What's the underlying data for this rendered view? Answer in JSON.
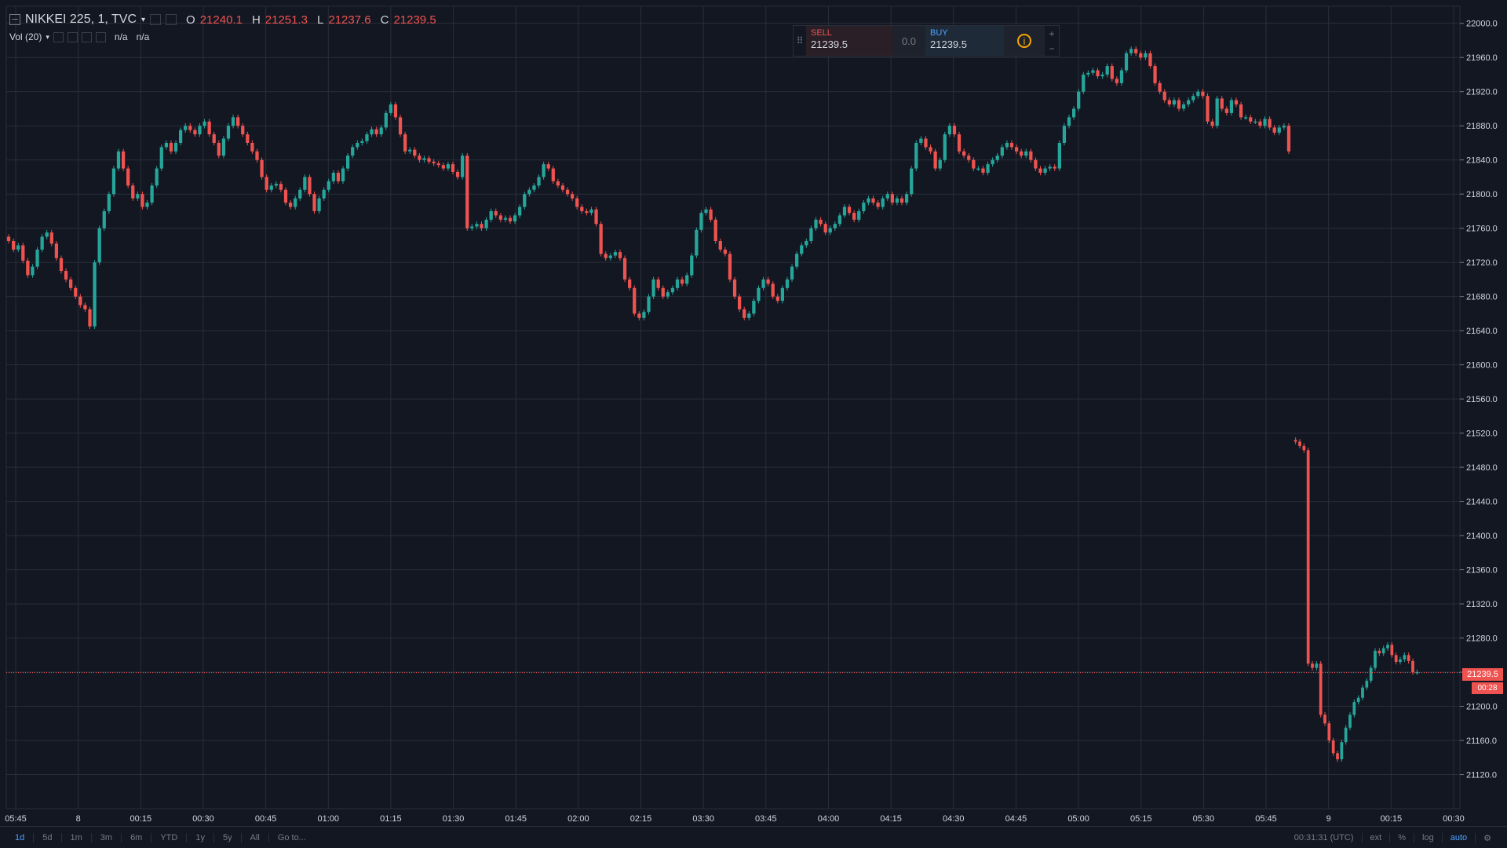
{
  "header": {
    "symbol": "NIKKEI 225, 1, TVC",
    "ohlc": [
      {
        "k": "O",
        "v": "21240.1"
      },
      {
        "k": "H",
        "v": "21251.3"
      },
      {
        "k": "L",
        "v": "21237.6"
      },
      {
        "k": "C",
        "v": "21239.5"
      }
    ],
    "volume_label": "Vol (20)",
    "volume_values": [
      "n/a",
      "n/a"
    ]
  },
  "trade_panel": {
    "sell_label": "SELL",
    "sell_price": "21239.5",
    "spread": "0.0",
    "buy_label": "BUY",
    "buy_price": "21239.5",
    "plus": "+",
    "minus": "−"
  },
  "price_tag": "21239.5",
  "timer_tag": "00:28",
  "toolbar": {
    "ranges": [
      "1d",
      "5d",
      "1m",
      "3m",
      "6m",
      "YTD",
      "1y",
      "5y",
      "All",
      "Go to..."
    ],
    "active_range": "1d",
    "clock": "00:31:31 (UTC)",
    "ext": "ext",
    "percent": "%",
    "log": "log",
    "auto": "auto"
  },
  "colors": {
    "background": "#131722",
    "grid": "#2a2e39",
    "up": "#26a69a",
    "down": "#ef5350",
    "text": "#d1d4dc",
    "muted": "#787b86",
    "accent": "#4fa3ff"
  },
  "chart_data": {
    "type": "candlestick",
    "title": "NIKKEI 225, 1, TVC",
    "ylim": [
      21080,
      22020
    ],
    "y_ticks": [
      22000,
      21960,
      21920,
      21880,
      21840,
      21800,
      21760,
      21720,
      21680,
      21640,
      21600,
      21560,
      21520,
      21480,
      21440,
      21400,
      21360,
      21320,
      21280,
      21240,
      21200,
      21160,
      21120
    ],
    "x_ticks": [
      "05:45",
      "8",
      "00:15",
      "00:30",
      "00:45",
      "01:00",
      "01:15",
      "01:30",
      "01:45",
      "02:00",
      "02:15",
      "03:30",
      "03:45",
      "04:00",
      "04:15",
      "04:30",
      "04:45",
      "05:00",
      "05:15",
      "05:30",
      "05:45",
      "9",
      "00:15",
      "00:30"
    ],
    "last_price": 21239.5,
    "series": [
      {
        "session": "Day 8",
        "values": [
          21745,
          21735,
          21740,
          21722,
          21705,
          21715,
          21735,
          21750,
          21755,
          21742,
          21725,
          21710,
          21700,
          21690,
          21680,
          21670,
          21665,
          21645,
          21720,
          21760,
          21780,
          21800,
          21830,
          21850,
          21830,
          21810,
          21795,
          21800,
          21785,
          21790,
          21810,
          21830,
          21855,
          21860,
          21850,
          21860,
          21875,
          21880,
          21875,
          21870,
          21880,
          21885,
          21870,
          21860,
          21845,
          21865,
          21880,
          21890,
          21880,
          21870,
          21860,
          21850,
          21840,
          21820,
          21805,
          21810,
          21812,
          21805,
          21790,
          21785,
          21795,
          21805,
          21820,
          21800,
          21780,
          21795,
          21805,
          21815,
          21825,
          21815,
          21830,
          21845,
          21855,
          21860,
          21862,
          21870,
          21876,
          21870,
          21878,
          21895,
          21905,
          21890,
          21870,
          21850,
          21852,
          21845,
          21840,
          21842,
          21838,
          21836,
          21834,
          21830,
          21835,
          21826,
          21820,
          21845,
          21760,
          21762,
          21765,
          21760,
          21770,
          21780,
          21775,
          21770,
          21772,
          21768,
          21775,
          21785,
          21800,
          21805,
          21810,
          21820,
          21835,
          21830,
          21815,
          21810,
          21805,
          21800,
          21795,
          21785,
          21780,
          21778,
          21782,
          21765,
          21730,
          21725,
          21728,
          21732,
          21725,
          21700,
          21690,
          21660,
          21655,
          21662,
          21680,
          21700,
          21690,
          21680,
          21685,
          21690,
          21700,
          21695,
          21705,
          21728,
          21758,
          21778,
          21782,
          21770,
          21745,
          21735,
          21730,
          21700,
          21680,
          21665,
          21655,
          21660,
          21675,
          21690,
          21700,
          21695,
          21680,
          21675,
          21690,
          21700,
          21715,
          21730,
          21740,
          21745,
          21760,
          21770,
          21765,
          21755,
          21760,
          21765,
          21775,
          21785,
          21778,
          21770,
          21780,
          21790,
          21795,
          21790,
          21785,
          21795,
          21800,
          21790,
          21795,
          21790,
          21800,
          21830,
          21860,
          21865,
          21855,
          21850,
          21830,
          21840,
          21870,
          21880,
          21870,
          21850,
          21845,
          21840,
          21830,
          21830,
          21825,
          21835,
          21840,
          21845,
          21855,
          21860,
          21855,
          21850,
          21845,
          21850,
          21840,
          21830,
          21825,
          21830,
          21832,
          21830,
          21860,
          21880,
          21890,
          21900,
          21920,
          21940,
          21942,
          21945,
          21938,
          21940,
          21950,
          21935,
          21930,
          21945,
          21965,
          21970,
          21965,
          21960,
          21965,
          21950,
          21930,
          21920,
          21910,
          21905,
          21910,
          21900,
          21905,
          21910,
          21915,
          21920,
          21915,
          21885,
          21880,
          21912,
          21900,
          21895,
          21910,
          21905,
          21890,
          21890,
          21885,
          21885,
          21880,
          21888,
          21878,
          21872,
          21878,
          21880,
          21850
        ]
      },
      {
        "session": "Day 9",
        "values": [
          21510,
          21505,
          21500,
          21250,
          21245,
          21250,
          21190,
          21180,
          21160,
          21145,
          21138,
          21158,
          21175,
          21190,
          21205,
          21210,
          21222,
          21230,
          21245,
          21265,
          21262,
          21268,
          21272,
          21260,
          21252,
          21255,
          21260,
          21253,
          21240,
          21240
        ]
      }
    ]
  }
}
